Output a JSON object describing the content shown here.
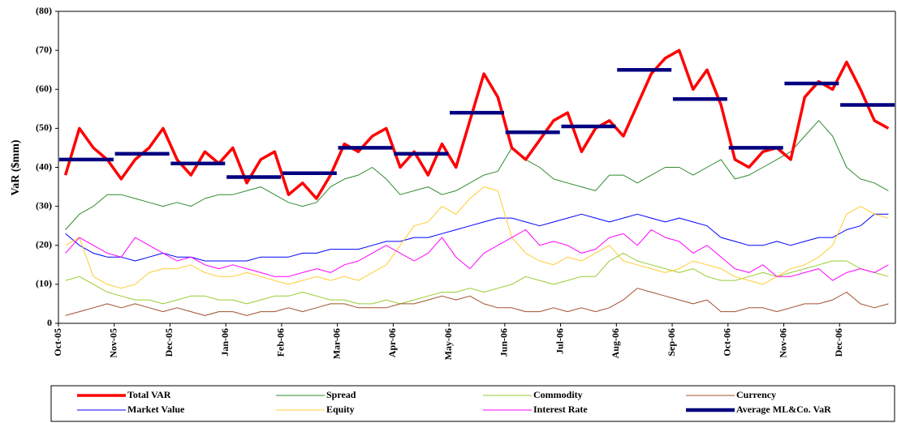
{
  "chart_data": {
    "type": "line",
    "y_label": "VaR ($mm)",
    "categories": [
      "Oct-05",
      null,
      null,
      null,
      "Nov-05",
      null,
      null,
      null,
      "Dec-05",
      null,
      null,
      null,
      "Jan-06",
      null,
      null,
      null,
      "Feb-06",
      null,
      null,
      null,
      "Mar-06",
      null,
      null,
      null,
      "Apr-06",
      null,
      null,
      null,
      "May-06",
      null,
      null,
      null,
      "Jun-06",
      null,
      null,
      null,
      "Jul-06",
      null,
      null,
      null,
      "Aug-06",
      null,
      null,
      null,
      "Sep-06",
      null,
      null,
      null,
      "Oct-06",
      null,
      null,
      null,
      "Nov-06",
      null,
      null,
      null,
      "Dec-06",
      null,
      null,
      null
    ],
    "ylim": [
      0,
      80
    ],
    "yticks": [
      0,
      {
        "value": 10,
        "label": "(10)"
      },
      {
        "value": 20,
        "label": "(20)"
      },
      {
        "value": 30,
        "label": "(30)"
      },
      {
        "value": 40,
        "label": "(40)"
      },
      {
        "value": 50,
        "label": "(50)"
      },
      {
        "value": 60,
        "label": "(60)"
      },
      {
        "value": 70,
        "label": "(70)"
      },
      {
        "value": 80,
        "label": "(80)"
      }
    ],
    "grid": false,
    "legend": "bottom",
    "series": [
      {
        "name": "Total VAR",
        "color": "#ff0000",
        "width": 3.5,
        "values": [
          38,
          50,
          45,
          42,
          37,
          42,
          45,
          50,
          42,
          38,
          44,
          41,
          45,
          36,
          42,
          44,
          33,
          36,
          32,
          38,
          46,
          44,
          48,
          50,
          40,
          44,
          38,
          46,
          40,
          52,
          64,
          58,
          45,
          42,
          47,
          52,
          54,
          44,
          50,
          52,
          48,
          56,
          64,
          68,
          70,
          60,
          65,
          56,
          42,
          40,
          44,
          45,
          42,
          58,
          62,
          60,
          67,
          60,
          52,
          50
        ]
      },
      {
        "name": "Spread",
        "color": "#2e8b2e",
        "width": 1,
        "values": [
          24,
          28,
          30,
          33,
          33,
          32,
          31,
          30,
          31,
          30,
          32,
          33,
          33,
          34,
          35,
          33,
          31,
          30,
          31,
          35,
          37,
          38,
          40,
          37,
          33,
          34,
          35,
          33,
          34,
          36,
          38,
          39,
          45,
          42,
          40,
          37,
          36,
          35,
          34,
          38,
          38,
          36,
          38,
          40,
          40,
          38,
          40,
          42,
          37,
          38,
          40,
          42,
          44,
          48,
          52,
          48,
          40,
          37,
          36,
          34
        ]
      },
      {
        "name": "Commodity",
        "color": "#99cc33",
        "width": 1,
        "values": [
          11,
          12,
          10,
          8,
          7,
          6,
          6,
          5,
          6,
          7,
          7,
          6,
          6,
          5,
          6,
          7,
          7,
          8,
          7,
          6,
          6,
          5,
          5,
          6,
          5,
          6,
          7,
          8,
          8,
          9,
          8,
          9,
          10,
          12,
          11,
          10,
          11,
          12,
          12,
          16,
          18,
          16,
          15,
          14,
          13,
          14,
          12,
          11,
          11,
          12,
          13,
          12,
          13,
          14,
          15,
          16,
          16,
          14,
          13,
          12
        ]
      },
      {
        "name": "Currency",
        "color": "#a0522d",
        "width": 1,
        "values": [
          2,
          3,
          4,
          5,
          4,
          5,
          4,
          3,
          4,
          3,
          2,
          3,
          3,
          2,
          3,
          3,
          4,
          3,
          4,
          5,
          5,
          4,
          4,
          4,
          5,
          5,
          6,
          7,
          6,
          7,
          5,
          4,
          4,
          3,
          3,
          4,
          3,
          4,
          3,
          4,
          6,
          9,
          8,
          7,
          6,
          5,
          6,
          3,
          3,
          4,
          4,
          3,
          4,
          5,
          5,
          6,
          8,
          5,
          4,
          5
        ]
      },
      {
        "name": "Market Value",
        "color": "#0000ff",
        "width": 1,
        "values": [
          23,
          20,
          18,
          17,
          17,
          16,
          17,
          18,
          17,
          17,
          16,
          16,
          16,
          16,
          17,
          17,
          17,
          18,
          18,
          19,
          19,
          19,
          20,
          21,
          21,
          22,
          22,
          23,
          24,
          25,
          26,
          27,
          27,
          26,
          25,
          26,
          27,
          28,
          27,
          26,
          27,
          28,
          27,
          26,
          27,
          26,
          25,
          22,
          21,
          20,
          20,
          21,
          20,
          21,
          22,
          22,
          24,
          25,
          28,
          28
        ]
      },
      {
        "name": "Equity",
        "color": "#ffcc33",
        "width": 1,
        "values": [
          20,
          22,
          12,
          10,
          9,
          10,
          13,
          14,
          14,
          15,
          13,
          12,
          12,
          13,
          12,
          11,
          10,
          11,
          12,
          11,
          12,
          11,
          13,
          15,
          20,
          25,
          26,
          30,
          28,
          32,
          35,
          34,
          22,
          18,
          16,
          15,
          17,
          16,
          18,
          20,
          16,
          15,
          14,
          13,
          14,
          16,
          15,
          14,
          12,
          11,
          10,
          12,
          14,
          15,
          17,
          20,
          28,
          30,
          28,
          27
        ]
      },
      {
        "name": "Interest Rate",
        "color": "#ff00ff",
        "width": 1,
        "values": [
          18,
          22,
          20,
          18,
          17,
          22,
          20,
          18,
          16,
          17,
          15,
          14,
          15,
          14,
          13,
          12,
          12,
          13,
          14,
          13,
          15,
          16,
          18,
          20,
          18,
          16,
          18,
          22,
          17,
          14,
          18,
          20,
          22,
          24,
          20,
          21,
          20,
          18,
          19,
          22,
          23,
          20,
          24,
          22,
          21,
          18,
          20,
          17,
          14,
          13,
          15,
          12,
          12,
          13,
          14,
          11,
          13,
          14,
          13,
          15
        ]
      },
      {
        "name": "Average ML&Co. VaR",
        "color": "#000080",
        "width": 4.5,
        "style": "step",
        "values": [
          42,
          42,
          42,
          42,
          43.5,
          43.5,
          43.5,
          43.5,
          41,
          41,
          41,
          41,
          37.5,
          37.5,
          37.5,
          37.5,
          38.5,
          38.5,
          38.5,
          38.5,
          45,
          45,
          45,
          45,
          43.5,
          43.5,
          43.5,
          43.5,
          54,
          54,
          54,
          54,
          49,
          49,
          49,
          49,
          50.5,
          50.5,
          50.5,
          50.5,
          65,
          65,
          65,
          65,
          57.5,
          57.5,
          57.5,
          57.5,
          45,
          45,
          45,
          45,
          61.5,
          61.5,
          61.5,
          61.5,
          56,
          56,
          56,
          56
        ]
      }
    ]
  }
}
